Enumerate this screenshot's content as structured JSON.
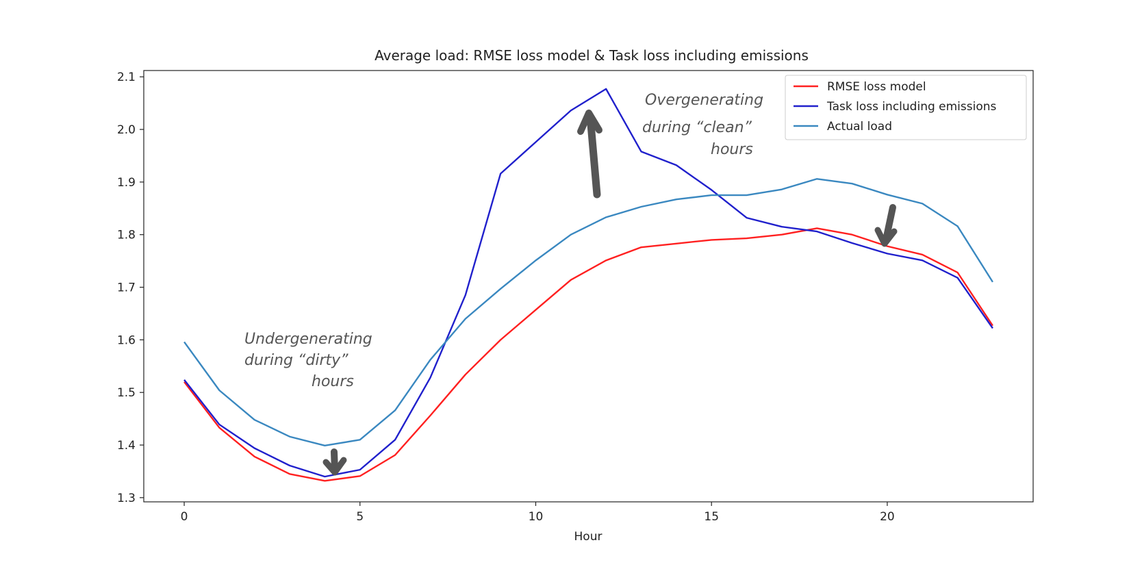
{
  "chart_data": {
    "type": "line",
    "title": "Average load: RMSE loss model & Task loss including emissions",
    "xlabel": "Hour",
    "ylabel": "",
    "xlim": [
      -1.15,
      24.15
    ],
    "ylim": [
      1.292,
      2.112
    ],
    "xticks": [
      0,
      5,
      10,
      15,
      20
    ],
    "xtick_labels": [
      "0",
      "5",
      "10",
      "15",
      "20"
    ],
    "yticks": [
      1.3,
      1.4,
      1.5,
      1.6,
      1.7,
      1.8,
      1.9,
      2.0,
      2.1
    ],
    "ytick_labels": [
      "1.3",
      "1.4",
      "1.5",
      "1.6",
      "1.7",
      "1.8",
      "1.9",
      "2.0",
      "2.1"
    ],
    "grid": false,
    "legend_position": "top-right",
    "x": [
      0,
      1,
      2,
      3,
      4,
      5,
      6,
      7,
      8,
      9,
      10,
      11,
      12,
      13,
      14,
      15,
      16,
      17,
      18,
      19,
      20,
      21,
      22,
      23
    ],
    "series": [
      {
        "name": "RMSE loss model",
        "color": "#ff2020",
        "values": [
          1.52,
          1.433,
          1.378,
          1.345,
          1.332,
          1.341,
          1.381,
          1.456,
          1.534,
          1.6,
          1.657,
          1.714,
          1.751,
          1.776,
          1.783,
          1.79,
          1.793,
          1.8,
          1.812,
          1.8,
          1.778,
          1.762,
          1.728,
          1.627
        ]
      },
      {
        "name": "Task loss including emissions",
        "color": "#2020cc",
        "values": [
          1.524,
          1.439,
          1.394,
          1.361,
          1.34,
          1.353,
          1.41,
          1.528,
          1.685,
          1.916,
          1.976,
          2.036,
          2.077,
          1.958,
          1.932,
          1.885,
          1.832,
          1.815,
          1.806,
          1.784,
          1.764,
          1.751,
          1.718,
          1.622
        ]
      },
      {
        "name": "Actual load",
        "color": "#3a88c0",
        "values": [
          1.596,
          1.504,
          1.448,
          1.416,
          1.399,
          1.41,
          1.466,
          1.562,
          1.64,
          1.697,
          1.751,
          1.8,
          1.833,
          1.853,
          1.867,
          1.875,
          1.875,
          1.886,
          1.906,
          1.897,
          1.876,
          1.859,
          1.816,
          1.71
        ]
      }
    ],
    "annotations": [
      {
        "lines": [
          "Undergenerating",
          "during “dirty”",
          "hours"
        ]
      },
      {
        "lines": [
          "Overgenerating",
          "during “clean”",
          "hours"
        ]
      }
    ]
  }
}
